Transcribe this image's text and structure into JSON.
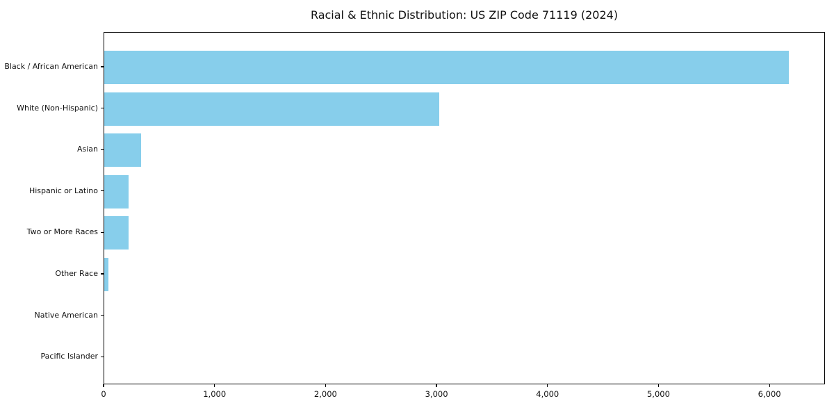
{
  "chart_data": {
    "type": "bar",
    "orientation": "horizontal",
    "title": "Racial & Ethnic Distribution: US ZIP Code 71119 (2024)",
    "categories": [
      "Black / African American",
      "White (Non-Hispanic)",
      "Asian",
      "Hispanic or Latino",
      "Two or More Races",
      "Other Race",
      "Native American",
      "Pacific Islander"
    ],
    "values": [
      6170,
      3020,
      335,
      220,
      220,
      35,
      0,
      0
    ],
    "xlabel": "",
    "ylabel": "",
    "xlim": [
      0,
      6500
    ],
    "xticks": {
      "values": [
        0,
        1000,
        2000,
        3000,
        4000,
        5000,
        6000
      ],
      "labels": [
        "0",
        "1,000",
        "2,000",
        "3,000",
        "4,000",
        "5,000",
        "6,000"
      ]
    },
    "bar_color": "#87CEEB",
    "grid": false,
    "legend": null,
    "frame": "full-box"
  }
}
